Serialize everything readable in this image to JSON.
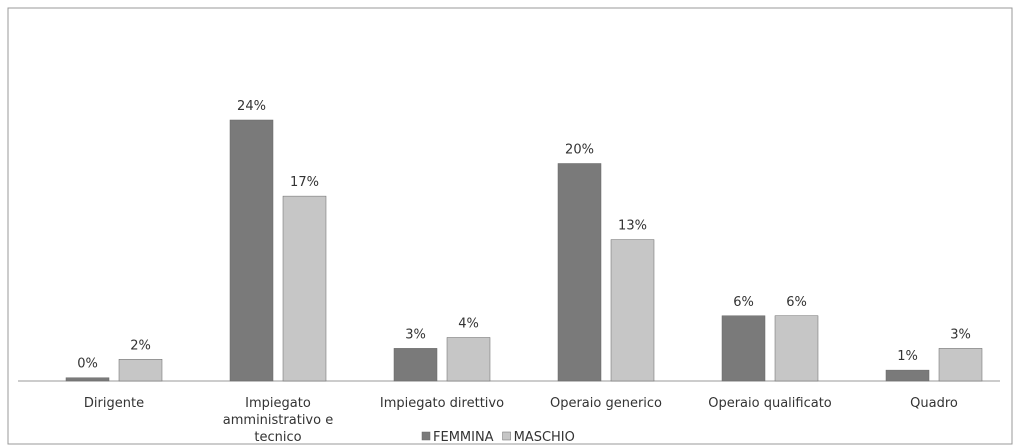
{
  "chart_data": {
    "type": "bar",
    "categories": [
      "Dirigente",
      "Impiegato amministrativo e tecnico",
      "Impiegato direttivo",
      "Operaio generico",
      "Operaio qualificato",
      "Quadro"
    ],
    "series": [
      {
        "name": "FEMMINA",
        "color": "#7a7a7a",
        "values": [
          0.3,
          24,
          3,
          20,
          6,
          1
        ],
        "value_labels": [
          "0%",
          "24%",
          "3%",
          "20%",
          "6%",
          "1%"
        ]
      },
      {
        "name": "MASCHIO",
        "color": "#c6c6c6",
        "values": [
          2,
          17,
          4,
          13,
          6,
          3
        ],
        "value_labels": [
          "2%",
          "17%",
          "4%",
          "13%",
          "6%",
          "3%"
        ]
      }
    ],
    "legend": "bottom"
  }
}
